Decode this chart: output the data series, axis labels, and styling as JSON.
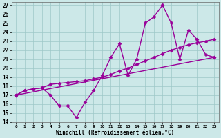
{
  "xlabel": "Windchill (Refroidissement éolien,°C)",
  "xlim": [
    -0.5,
    23.5
  ],
  "ylim": [
    14,
    27.3
  ],
  "xticks": [
    0,
    1,
    2,
    3,
    4,
    5,
    6,
    7,
    8,
    9,
    10,
    11,
    12,
    13,
    14,
    15,
    16,
    17,
    18,
    19,
    20,
    21,
    22,
    23
  ],
  "yticks": [
    14,
    15,
    16,
    17,
    18,
    19,
    20,
    21,
    22,
    23,
    24,
    25,
    26,
    27
  ],
  "bg_color": "#cce8e8",
  "line_color": "#990099",
  "line1_x": [
    0,
    1,
    2,
    3,
    4,
    5,
    6,
    7,
    8,
    9,
    10,
    11,
    12,
    13,
    14,
    15,
    16,
    17,
    18,
    19,
    20,
    21,
    22,
    23
  ],
  "line1_y": [
    17.0,
    17.5,
    17.7,
    17.8,
    17.0,
    15.8,
    15.8,
    14.5,
    16.2,
    17.5,
    19.2,
    21.2,
    22.7,
    19.2,
    21.0,
    25.0,
    25.7,
    27.0,
    25.0,
    21.0,
    24.2,
    23.2,
    21.5,
    21.2
  ],
  "line2_x": [
    0,
    1,
    2,
    3,
    4,
    5,
    6,
    7,
    8,
    9,
    10,
    11,
    12,
    13,
    14,
    15,
    16,
    17,
    18,
    19,
    20,
    21,
    22,
    23
  ],
  "line2_y": [
    17.0,
    17.5,
    17.7,
    17.8,
    18.2,
    18.3,
    18.4,
    18.5,
    18.6,
    18.8,
    19.0,
    19.3,
    19.7,
    20.0,
    20.4,
    20.8,
    21.2,
    21.6,
    22.0,
    22.3,
    22.6,
    22.8,
    23.0,
    23.2
  ],
  "line3_x": [
    0,
    23
  ],
  "line3_y": [
    17.0,
    21.2
  ],
  "marker": "D",
  "markersize": 2.5,
  "linewidth": 1.0
}
